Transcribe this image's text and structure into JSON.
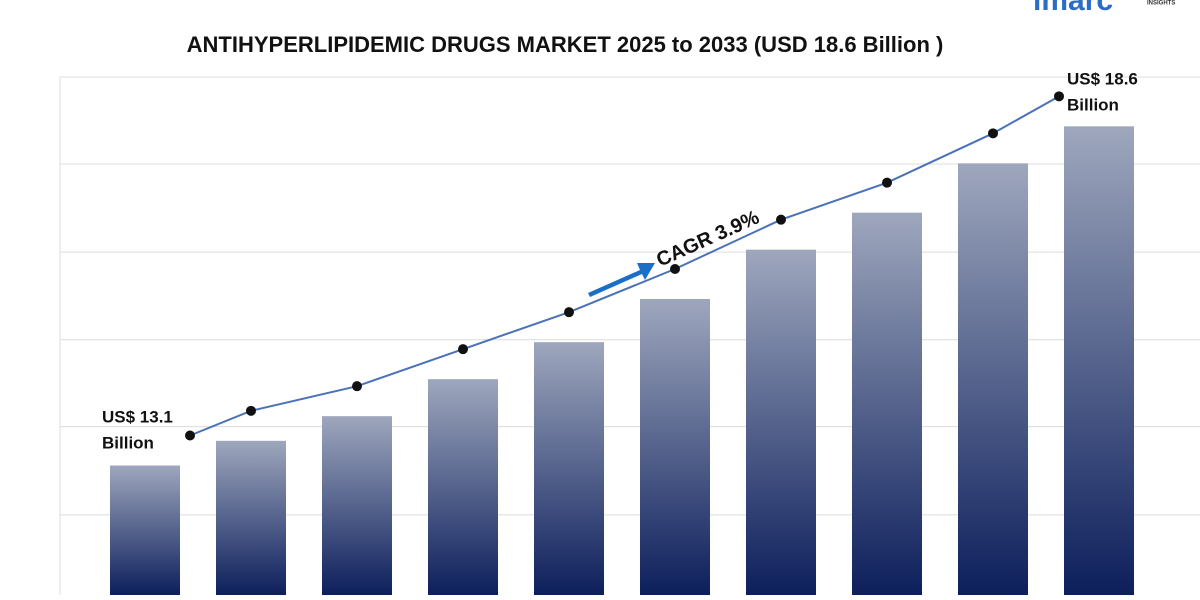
{
  "logo": "imarc",
  "logo_sub": "INSIGHTS",
  "chart_data": {
    "type": "bar",
    "title": "ANTIHYPERLIPIDEMIC DRUGS MARKET 2025 to 2033 (USD 18.6 Billion )",
    "categories": [
      null,
      null,
      null,
      null,
      null,
      null,
      null,
      null,
      null,
      null
    ],
    "values": [
      13.1,
      13.5,
      13.9,
      14.5,
      15.1,
      15.8,
      16.6,
      17.2,
      18.0,
      18.6
    ],
    "value_labels": [
      "US$ 13.1 Billion",
      null,
      null,
      null,
      null,
      null,
      null,
      null,
      null,
      "US$ 18.6 Billion"
    ],
    "annotation": "CAGR 3.9%",
    "color": "#0d1f5c",
    "color_top": "#9ea7bd",
    "line_color": "#4a72b8",
    "ylim": [
      11,
      19.4
    ],
    "yticks": [
      12.3,
      13.73,
      15.14,
      16.56,
      17.99,
      19.4
    ],
    "grid": true
  }
}
